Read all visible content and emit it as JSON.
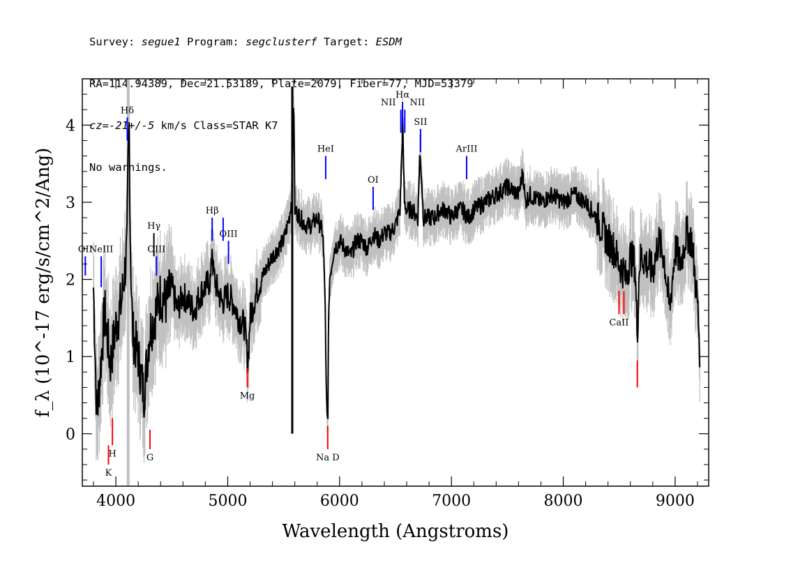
{
  "header": {
    "line1": [
      {
        "t": "Survey: ",
        "i": false
      },
      {
        "t": "segue1",
        "i": true
      },
      {
        "t": " Program: ",
        "i": false
      },
      {
        "t": "segclusterf",
        "i": true
      },
      {
        "t": " Target: ",
        "i": false
      },
      {
        "t": "ESDM",
        "i": true
      }
    ],
    "line2": "RA=114.94389, Dec=21.53189, Plate=2079, Fiber=77, MJD=53379",
    "line3": [
      {
        "t": "cz=-21+/-5",
        "i": true
      },
      {
        "t": " km/s Class=STAR K7",
        "i": false
      }
    ],
    "line4": "No warnings."
  },
  "chart_data": {
    "type": "line",
    "xlabel": "Wavelength (Angstroms)",
    "ylabel": "f_λ (10^-17 erg/s/cm^2/Ang)",
    "xlim": [
      3700,
      9300
    ],
    "ylim": [
      -0.68,
      4.6
    ],
    "xticks": [
      4000,
      5000,
      6000,
      7000,
      8000,
      9000
    ],
    "yticks": [
      0,
      1,
      2,
      3,
      4
    ],
    "series": [
      {
        "color": "#000000",
        "error_band_color": "#c0c0c0",
        "x": [
          3800,
          3830,
          3860,
          3900,
          3950,
          4000,
          4050,
          4100,
          4110,
          4120,
          4130,
          4150,
          4200,
          4250,
          4300,
          4340,
          4400,
          4450,
          4500,
          4550,
          4600,
          4650,
          4700,
          4750,
          4800,
          4850,
          4861,
          4870,
          4900,
          4950,
          5000,
          5050,
          5100,
          5150,
          5170,
          5180,
          5200,
          5250,
          5300,
          5400,
          5500,
          5550,
          5577,
          5590,
          5600,
          5650,
          5700,
          5750,
          5800,
          5850,
          5870,
          5880,
          5890,
          5896,
          5900,
          5910,
          5950,
          6000,
          6050,
          6100,
          6150,
          6200,
          6250,
          6300,
          6350,
          6400,
          6450,
          6500,
          6540,
          6560,
          6563,
          6570,
          6580,
          6600,
          6650,
          6700,
          6716,
          6731,
          6750,
          6800,
          6850,
          6900,
          6950,
          7000,
          7050,
          7100,
          7150,
          7200,
          7300,
          7400,
          7500,
          7600,
          7640,
          7660,
          7700,
          7800,
          7900,
          8000,
          8100,
          8200,
          8300,
          8400,
          8450,
          8500,
          8542,
          8560,
          8600,
          8640,
          8662,
          8680,
          8700,
          8750,
          8800,
          8850,
          8900,
          8950,
          9000,
          9050,
          9100,
          9150,
          9180,
          9200,
          9220
        ],
        "y": [
          1.9,
          0.2,
          0.8,
          1.6,
          0.9,
          1.4,
          1.7,
          2.4,
          3.6,
          4.0,
          2.4,
          1.3,
          1.0,
          0.5,
          1.3,
          1.5,
          1.8,
          1.7,
          1.9,
          1.6,
          1.8,
          1.7,
          1.6,
          1.8,
          1.9,
          2.0,
          2.5,
          2.1,
          1.9,
          1.7,
          1.8,
          1.7,
          1.5,
          1.4,
          1.1,
          0.9,
          1.5,
          1.8,
          2.0,
          2.3,
          2.5,
          2.8,
          3.1,
          4.5,
          2.9,
          2.8,
          2.7,
          2.7,
          2.8,
          2.6,
          1.8,
          0.6,
          0.15,
          0.3,
          1.2,
          2.0,
          2.4,
          2.5,
          2.4,
          2.3,
          2.5,
          2.5,
          2.4,
          2.6,
          2.5,
          2.6,
          2.6,
          2.7,
          2.9,
          3.8,
          4.1,
          3.6,
          3.0,
          2.9,
          2.9,
          2.8,
          3.6,
          3.4,
          2.8,
          2.8,
          2.8,
          2.9,
          2.9,
          2.8,
          2.9,
          2.9,
          2.8,
          2.9,
          3.0,
          3.1,
          3.2,
          3.1,
          3.4,
          3.0,
          3.1,
          3.0,
          3.1,
          3.0,
          3.1,
          3.0,
          2.8,
          2.5,
          2.4,
          2.2,
          2.1,
          2.0,
          2.3,
          2.2,
          1.3,
          2.2,
          2.3,
          2.2,
          2.1,
          2.5,
          2.3,
          1.6,
          2.4,
          2.2,
          2.6,
          2.5,
          2.0,
          1.7,
          1.1
        ]
      }
    ],
    "lines": [
      {
        "name": "OII",
        "wave": 3727,
        "ymin": 2.05,
        "ymax": 2.3,
        "color": "#0000ff",
        "label_pos": "above"
      },
      {
        "name": "NeIII",
        "wave": 3869,
        "ymin": 1.9,
        "ymax": 2.3,
        "color": "#0000ff",
        "label_pos": "above"
      },
      {
        "name": "Hδ",
        "wave": 4102,
        "ymin": 3.8,
        "ymax": 4.1,
        "color": "#0000ff",
        "label_pos": "above"
      },
      {
        "name": "Hγ",
        "wave": 4340,
        "ymin": 2.3,
        "ymax": 2.6,
        "color": "#000000",
        "label_pos": "above"
      },
      {
        "name": "OIII",
        "wave": 4363,
        "ymin": 2.05,
        "ymax": 2.3,
        "color": "#0000ff",
        "label_pos": "above"
      },
      {
        "name": "Hβ",
        "wave": 4861,
        "ymin": 2.5,
        "ymax": 2.8,
        "color": "#0000ff",
        "label_pos": "above"
      },
      {
        "name": "",
        "wave": 4959,
        "ymin": 2.5,
        "ymax": 2.8,
        "color": "#0000ff",
        "label_pos": "none"
      },
      {
        "name": "OIII",
        "wave": 5007,
        "ymin": 2.2,
        "ymax": 2.5,
        "color": "#0000ff",
        "label_pos": "above"
      },
      {
        "name": "HeI",
        "wave": 5876,
        "ymin": 3.3,
        "ymax": 3.6,
        "color": "#0000ff",
        "label_pos": "above"
      },
      {
        "name": "OI",
        "wave": 6300,
        "ymin": 2.9,
        "ymax": 3.2,
        "color": "#0000ff",
        "label_pos": "above"
      },
      {
        "name": "NII",
        "wave": 6548,
        "ymin": 3.9,
        "ymax": 4.2,
        "color": "#0000ff",
        "label_pos": "above-left"
      },
      {
        "name": "Hα",
        "wave": 6563,
        "ymin": 4.0,
        "ymax": 4.3,
        "color": "#0000ff",
        "label_pos": "above"
      },
      {
        "name": "NII",
        "wave": 6583,
        "ymin": 3.9,
        "ymax": 4.2,
        "color": "#0000ff",
        "label_pos": "above-right"
      },
      {
        "name": "SII",
        "wave": 6724,
        "ymin": 3.65,
        "ymax": 3.95,
        "color": "#0000ff",
        "label_pos": "above"
      },
      {
        "name": "ArIII",
        "wave": 7136,
        "ymin": 3.3,
        "ymax": 3.6,
        "color": "#0000ff",
        "label_pos": "above"
      },
      {
        "name": "K",
        "wave": 3934,
        "ymin": -0.4,
        "ymax": -0.15,
        "color": "#ff0000",
        "label_pos": "below"
      },
      {
        "name": "H",
        "wave": 3969,
        "ymin": -0.15,
        "ymax": 0.2,
        "color": "#ff0000",
        "label_pos": "below"
      },
      {
        "name": "G",
        "wave": 4305,
        "ymin": -0.2,
        "ymax": 0.05,
        "color": "#ff0000",
        "label_pos": "below"
      },
      {
        "name": "Mg",
        "wave": 5175,
        "ymin": 0.6,
        "ymax": 0.85,
        "color": "#ff0000",
        "label_pos": "below"
      },
      {
        "name": "Na D",
        "wave": 5894,
        "ymin": -0.2,
        "ymax": 0.1,
        "color": "#ff0000",
        "label_pos": "below"
      },
      {
        "name": "CaII",
        "wave": 8498,
        "ymin": 1.55,
        "ymax": 1.85,
        "color": "#ff0000",
        "label_pos": "below"
      },
      {
        "name": "",
        "wave": 8542,
        "ymin": 1.55,
        "ymax": 1.85,
        "color": "#ff0000",
        "label_pos": "none"
      },
      {
        "name": "",
        "wave": 8662,
        "ymin": 0.6,
        "ymax": 0.95,
        "color": "#ff0000",
        "label_pos": "none"
      }
    ]
  }
}
